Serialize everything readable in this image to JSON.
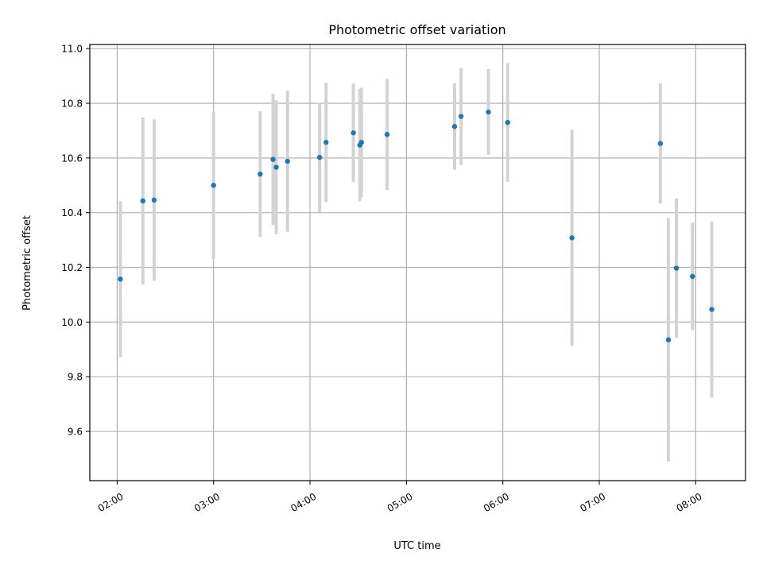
{
  "chart_data": {
    "type": "scatter",
    "title": "Photometric offset variation",
    "xlabel": "UTC time",
    "ylabel": "Photometric offset",
    "xlim": [
      "01:43",
      "08:31"
    ],
    "ylim": [
      9.42,
      11.015
    ],
    "grid": true,
    "legend": "none",
    "x_ticks": [
      "02:00",
      "03:00",
      "04:00",
      "05:00",
      "06:00",
      "07:00",
      "08:00"
    ],
    "y_ticks": [
      9.6,
      9.8,
      10.0,
      10.2,
      10.4,
      10.6,
      10.8,
      11.0
    ],
    "y_tick_labels": [
      "9.6",
      "9.8",
      "10.0",
      "10.2",
      "10.4",
      "10.6",
      "10.8",
      "11.0"
    ],
    "series": [
      {
        "color": "#1f77b4",
        "errorbar_color": "#d3d3d3",
        "points": [
          {
            "x": "02:02",
            "y": 10.157,
            "err": 0.285
          },
          {
            "x": "02:16",
            "y": 10.443,
            "err": 0.305
          },
          {
            "x": "02:23",
            "y": 10.446,
            "err": 0.295
          },
          {
            "x": "03:00",
            "y": 10.5,
            "err": 0.27
          },
          {
            "x": "03:29",
            "y": 10.541,
            "err": 0.23
          },
          {
            "x": "03:37",
            "y": 10.595,
            "err": 0.24
          },
          {
            "x": "03:39",
            "y": 10.566,
            "err": 0.245
          },
          {
            "x": "03:46",
            "y": 10.588,
            "err": 0.258
          },
          {
            "x": "04:06",
            "y": 10.602,
            "err": 0.2
          },
          {
            "x": "04:10",
            "y": 10.657,
            "err": 0.218
          },
          {
            "x": "04:27",
            "y": 10.692,
            "err": 0.18
          },
          {
            "x": "04:31",
            "y": 10.647,
            "err": 0.205
          },
          {
            "x": "04:32",
            "y": 10.657,
            "err": 0.2
          },
          {
            "x": "04:48",
            "y": 10.686,
            "err": 0.203
          },
          {
            "x": "05:30",
            "y": 10.715,
            "err": 0.158
          },
          {
            "x": "05:34",
            "y": 10.752,
            "err": 0.177
          },
          {
            "x": "05:51",
            "y": 10.768,
            "err": 0.157
          },
          {
            "x": "06:03",
            "y": 10.73,
            "err": 0.217
          },
          {
            "x": "06:43",
            "y": 10.308,
            "err": 0.395
          },
          {
            "x": "07:38",
            "y": 10.653,
            "err": 0.22
          },
          {
            "x": "07:43",
            "y": 9.935,
            "err": 0.445
          },
          {
            "x": "07:48",
            "y": 10.197,
            "err": 0.255
          },
          {
            "x": "07:58",
            "y": 10.167,
            "err": 0.197
          },
          {
            "x": "08:10",
            "y": 10.046,
            "err": 0.322
          }
        ]
      }
    ]
  }
}
